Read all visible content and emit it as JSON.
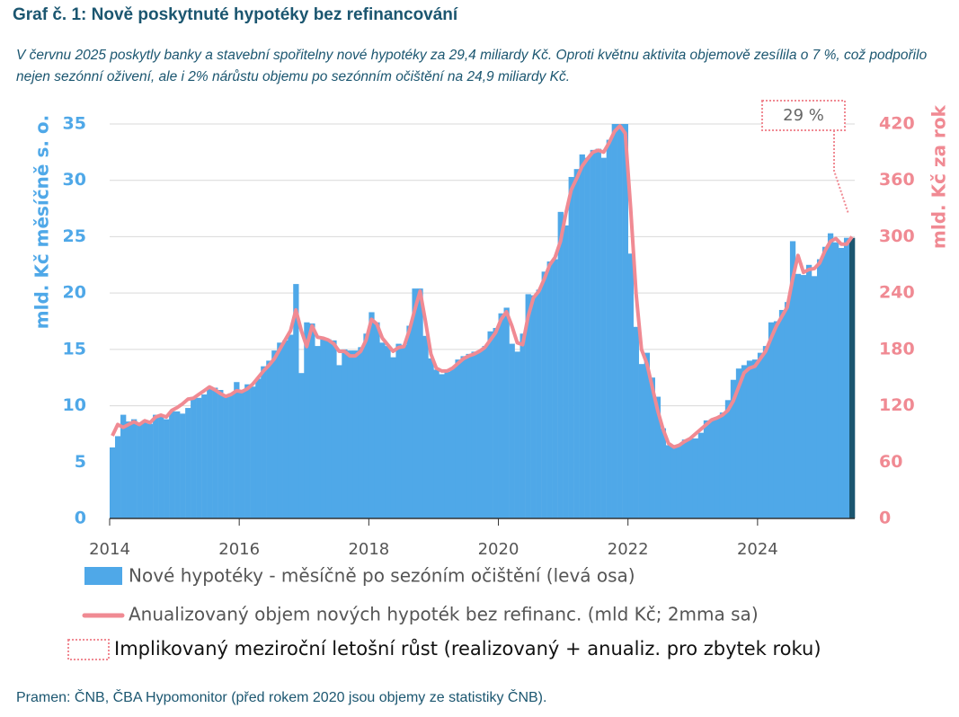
{
  "chart_data": {
    "type": "bar-line",
    "title": "Graf č. 1: Nově poskytnuté hypotéky bez refinancování",
    "subtitle": "V červnu 2025 poskytly banky a stavební spořitelny nové hypotéky za 29,4 miliardy Kč. Oproti květnu aktivita objemově zesílila o 7 %, což podpořilo nejen sezónní oživení, ale i 2% nárůstu objemu po sezónním očištění na 24,9 miliardy Kč.",
    "y_label": "mld. Kč měsíčně s. o.",
    "y2_label": "mld. Kč za rok",
    "source": "Pramen: ČNB, ČBA Hypomonitor (před rokem 2020 jsou objemy ze statistiky ČNB).",
    "annotation": "29 %",
    "annotation_legend": "Implikovaný meziroční letošní růst (realizovaný + anualiz. pro zbytek roku)",
    "annotation_color": "#f08a93",
    "last_bar_color": "#1b5670",
    "grid": true,
    "xlim": [
      2014,
      2025.5
    ],
    "xticks": [
      2014,
      2016,
      2018,
      2020,
      2022,
      2024
    ],
    "ylim": [
      0,
      35
    ],
    "yticks": [
      0,
      5,
      10,
      15,
      20,
      25,
      30,
      35
    ],
    "y2lim": [
      0,
      420
    ],
    "y2ticks": [
      0,
      60,
      120,
      180,
      240,
      300,
      360,
      420
    ],
    "x": [
      2014,
      2014.083,
      2014.167,
      2014.25,
      2014.333,
      2014.417,
      2014.5,
      2014.583,
      2014.667,
      2014.75,
      2014.833,
      2014.917,
      2015,
      2015.083,
      2015.167,
      2015.25,
      2015.333,
      2015.417,
      2015.5,
      2015.583,
      2015.667,
      2015.75,
      2015.833,
      2015.917,
      2016,
      2016.083,
      2016.167,
      2016.25,
      2016.333,
      2016.417,
      2016.5,
      2016.583,
      2016.667,
      2016.75,
      2016.833,
      2016.917,
      2017,
      2017.083,
      2017.167,
      2017.25,
      2017.333,
      2017.417,
      2017.5,
      2017.583,
      2017.667,
      2017.75,
      2017.833,
      2017.917,
      2018,
      2018.083,
      2018.167,
      2018.25,
      2018.333,
      2018.417,
      2018.5,
      2018.583,
      2018.667,
      2018.75,
      2018.833,
      2018.917,
      2019,
      2019.083,
      2019.167,
      2019.25,
      2019.333,
      2019.417,
      2019.5,
      2019.583,
      2019.667,
      2019.75,
      2019.833,
      2019.917,
      2020,
      2020.083,
      2020.167,
      2020.25,
      2020.333,
      2020.417,
      2020.5,
      2020.583,
      2020.667,
      2020.75,
      2020.833,
      2020.917,
      2021,
      2021.083,
      2021.167,
      2021.25,
      2021.333,
      2021.417,
      2021.5,
      2021.583,
      2021.667,
      2021.75,
      2021.833,
      2021.917,
      2022,
      2022.083,
      2022.167,
      2022.25,
      2022.333,
      2022.417,
      2022.5,
      2022.583,
      2022.667,
      2022.75,
      2022.833,
      2022.917,
      2023,
      2023.083,
      2023.167,
      2023.25,
      2023.333,
      2023.417,
      2023.5,
      2023.583,
      2023.667,
      2023.75,
      2023.833,
      2023.917,
      2024,
      2024.083,
      2024.167,
      2024.25,
      2024.333,
      2024.417,
      2024.5,
      2024.583,
      2024.667,
      2024.75,
      2024.833,
      2024.917,
      2025,
      2025.083,
      2025.167,
      2025.25,
      2025.333,
      2025.417
    ],
    "series": [
      {
        "name": "Nové hypotéky - měsíčně po sezóním očištění (levá osa)",
        "color": "#4fa8e8",
        "type": "bar",
        "values": [
          6.3,
          7.3,
          9.2,
          8.6,
          8.8,
          8.5,
          8.7,
          8.4,
          9.2,
          9.1,
          8.8,
          9.5,
          9.5,
          9.3,
          9.8,
          10.7,
          10.7,
          11.0,
          11.7,
          11.6,
          11.4,
          11.0,
          11.1,
          12.1,
          11.4,
          11.9,
          11.7,
          12.4,
          13.5,
          14.0,
          14.9,
          15.6,
          15.8,
          16.3,
          20.8,
          12.9,
          17.4,
          17.3,
          15.3,
          16.0,
          15.9,
          15.8,
          13.6,
          15.0,
          14.9,
          14.9,
          15.2,
          16.4,
          18.3,
          17.4,
          15.6,
          15.3,
          14.3,
          15.5,
          15.4,
          17.1,
          20.4,
          20.4,
          16.2,
          14.2,
          13.2,
          12.8,
          13.0,
          13.4,
          14.1,
          14.4,
          14.6,
          14.8,
          14.8,
          15.3,
          16.6,
          16.9,
          18.2,
          18.7,
          15.5,
          14.8,
          16.4,
          19.9,
          19.8,
          20.3,
          21.9,
          22.8,
          23.0,
          27.2,
          26.0,
          30.3,
          31.0,
          32.3,
          32.0,
          32.7,
          32.8,
          32.0,
          33.6,
          35.0,
          35.0,
          35.0,
          23.5,
          17.0,
          13.7,
          14.7,
          12.5,
          10.8,
          8.0,
          6.5,
          6.4,
          6.5,
          7.0,
          7.1,
          7.1,
          7.6,
          8.7,
          8.8,
          8.9,
          9.4,
          10.5,
          12.3,
          13.3,
          13.6,
          14.0,
          14.1,
          14.7,
          15.3,
          17.4,
          17.5,
          18.5,
          19.2,
          24.6,
          21.7,
          21.6,
          22.5,
          21.5,
          23.0,
          24.1,
          25.3,
          24.5,
          24.0,
          24.9,
          24.9
        ]
      },
      {
        "name": "Anualizovaný objem nových hypoték bez refinanc. (mld Kč; 2mma sa)",
        "color": "#f08a93",
        "type": "line",
        "axis": "y2",
        "values": [
          88,
          100,
          97,
          100,
          103,
          100,
          104,
          102,
          108,
          110,
          108,
          115,
          118,
          122,
          127,
          128,
          132,
          136,
          140,
          137,
          133,
          130,
          132,
          136,
          135,
          138,
          143,
          150,
          157,
          163,
          170,
          180,
          190,
          200,
          222,
          200,
          183,
          205,
          193,
          192,
          190,
          186,
          178,
          178,
          173,
          173,
          178,
          190,
          212,
          207,
          192,
          185,
          178,
          182,
          183,
          200,
          222,
          242,
          210,
          175,
          160,
          157,
          157,
          160,
          165,
          170,
          173,
          175,
          178,
          182,
          190,
          198,
          212,
          220,
          205,
          187,
          185,
          215,
          235,
          242,
          255,
          270,
          278,
          295,
          325,
          350,
          362,
          375,
          383,
          390,
          392,
          390,
          400,
          412,
          418,
          410,
          330,
          240,
          180,
          165,
          140,
          115,
          95,
          80,
          76,
          78,
          82,
          85,
          90,
          95,
          100,
          105,
          107,
          110,
          115,
          125,
          140,
          155,
          160,
          162,
          170,
          178,
          192,
          205,
          215,
          225,
          255,
          280,
          262,
          265,
          266,
          272,
          285,
          295,
          298,
          292,
          292,
          300
        ]
      }
    ]
  }
}
